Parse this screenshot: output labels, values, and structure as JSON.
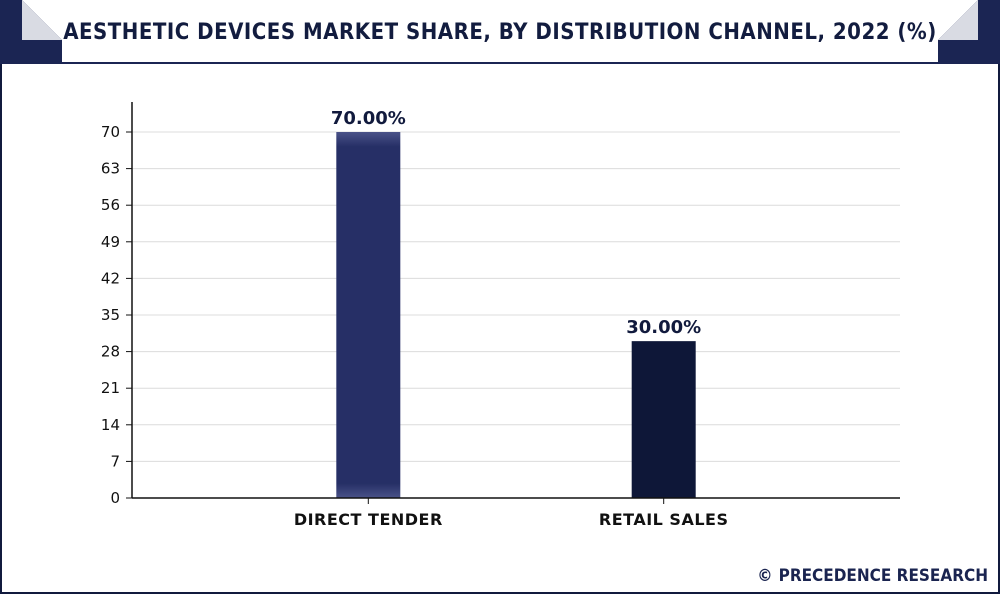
{
  "title": "AESTHETIC DEVICES MARKET SHARE, BY DISTRIBUTION CHANNEL, 2022 (%)",
  "brand": {
    "symbol": "©",
    "name": "PRECEDENCE RESEARCH"
  },
  "colors": {
    "frame": "#111a3d",
    "header_corner": "#1b2553",
    "bar_1": "#262f66",
    "bar_2": "#0e1738",
    "grid": "#dcdcdc",
    "axis": "#111111"
  },
  "chart_data": {
    "type": "bar",
    "title": "AESTHETIC DEVICES MARKET SHARE, BY DISTRIBUTION CHANNEL, 2022 (%)",
    "categories": [
      "DIRECT TENDER",
      "RETAIL SALES"
    ],
    "values": [
      70,
      30
    ],
    "data_labels": [
      "70.00%",
      "30.00%"
    ],
    "yticks": [
      0,
      7,
      14,
      21,
      28,
      35,
      42,
      49,
      56,
      63,
      70
    ],
    "ylim": [
      0,
      70
    ],
    "xlabel": "",
    "ylabel": "",
    "grid": true,
    "legend": "none"
  }
}
